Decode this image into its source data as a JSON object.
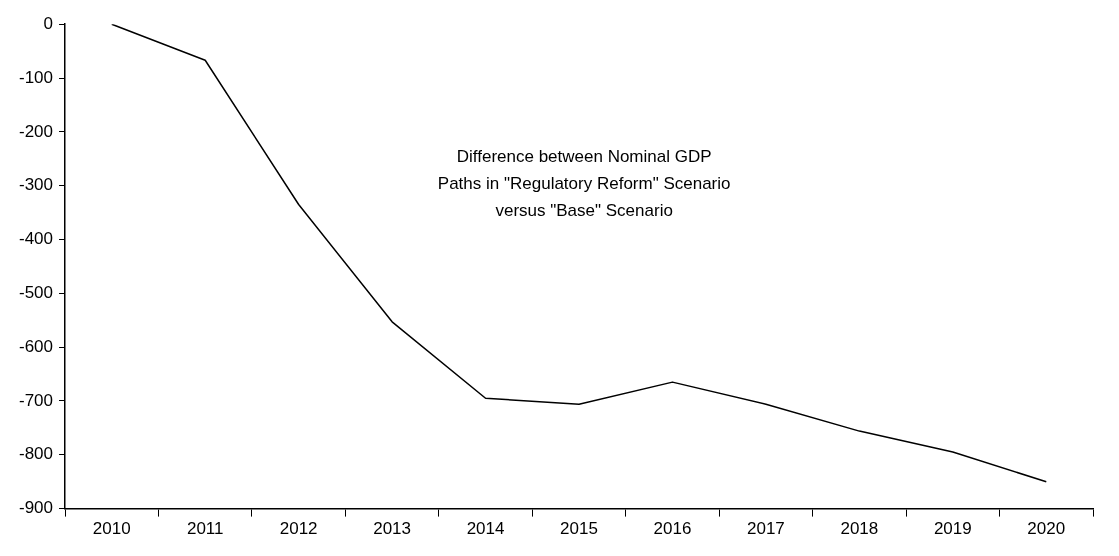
{
  "chart_data": {
    "type": "line",
    "title": "Difference between Nominal GDP Paths in \"Regulatory Reform\" Scenario versus \"Base\" Scenario",
    "categories": [
      "2010",
      "2011",
      "2012",
      "2013",
      "2014",
      "2015",
      "2016",
      "2017",
      "2018",
      "2019",
      "2020"
    ],
    "series": [
      {
        "color": "#000000",
        "values": [
          0,
          -67,
          -335,
          -553,
          -695,
          -706,
          -665,
          -706,
          -756,
          -795,
          -850
        ]
      }
    ],
    "ylim": [
      -900,
      0
    ],
    "yticks": [
      0,
      -100,
      -200,
      -300,
      -400,
      -500,
      -600,
      -700,
      -800,
      -900
    ],
    "grid": false,
    "legend": false,
    "marker": "none",
    "line_style": "solid"
  }
}
